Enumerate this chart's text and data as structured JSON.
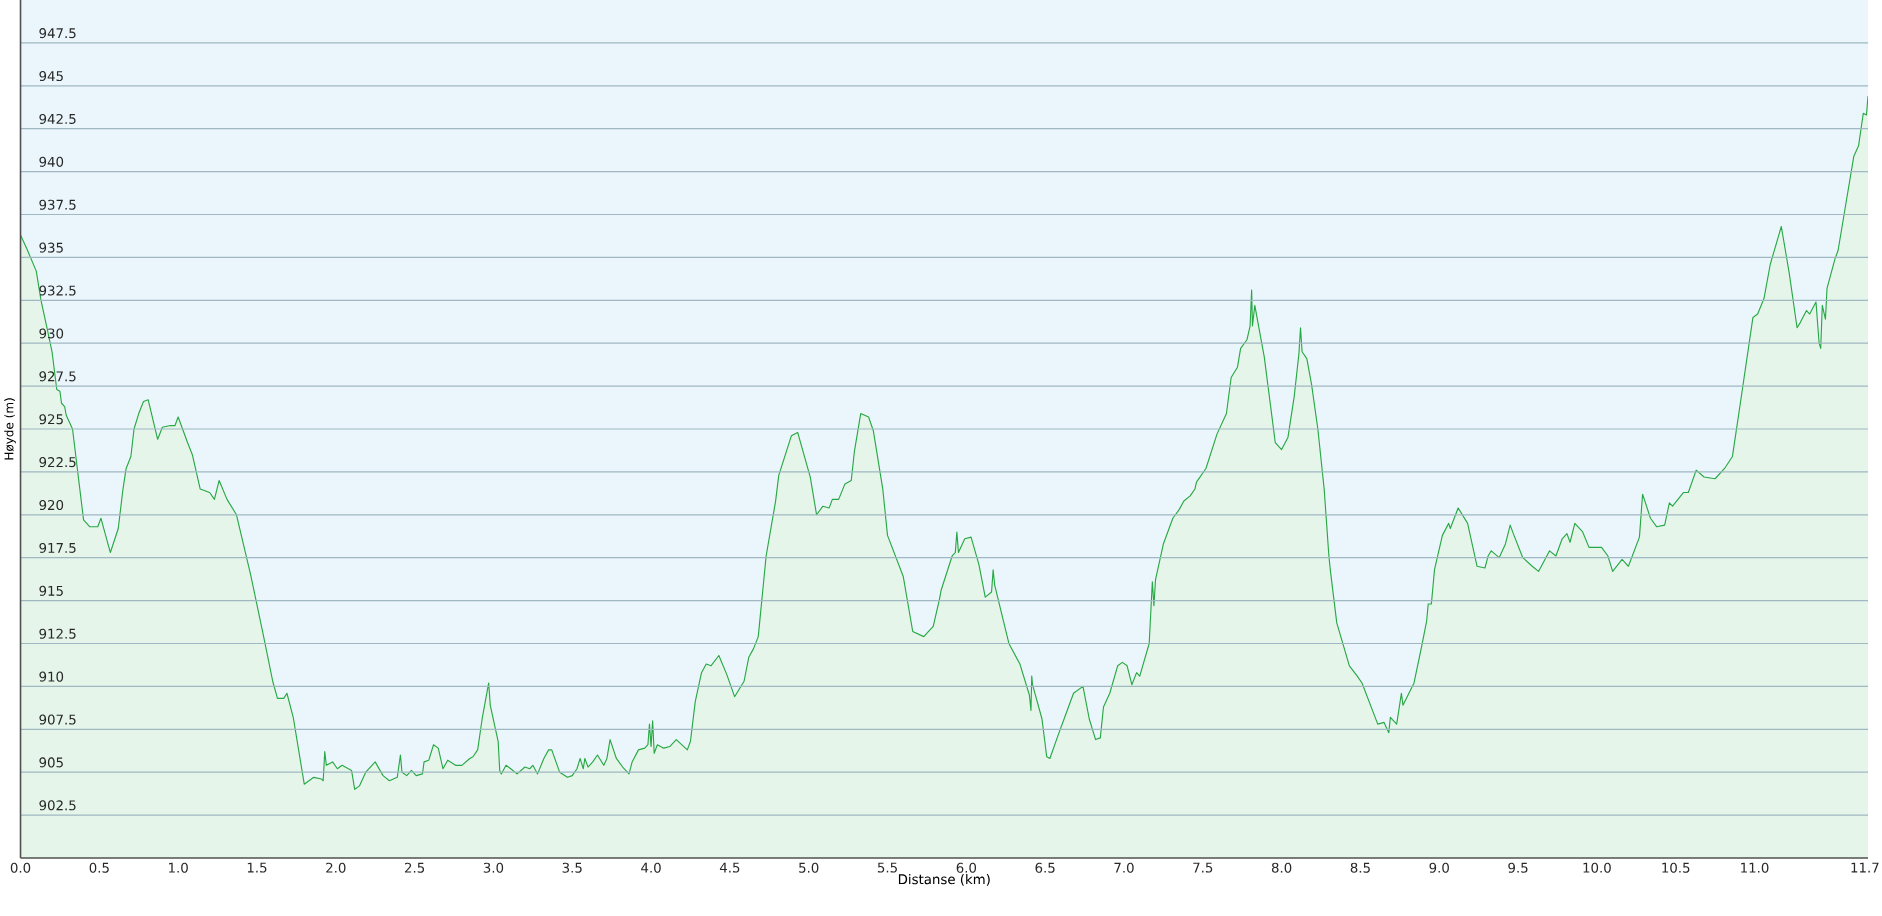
{
  "chart_data": {
    "type": "area",
    "xlabel": "Distanse  (km)",
    "ylabel": "Høyde (m)",
    "grid": "y",
    "xlim": [
      0,
      11.72
    ],
    "ylim": [
      900,
      950
    ],
    "xticks": [
      {
        "value": 0,
        "label": "0.0"
      },
      0.5,
      {
        "value": 1,
        "label": "1.0"
      },
      1.5,
      {
        "value": 2,
        "label": "2.0"
      },
      2.5,
      {
        "value": 3,
        "label": "3.0"
      },
      3.5,
      {
        "value": 4,
        "label": "4.0"
      },
      4.5,
      {
        "value": 5,
        "label": "5.0"
      },
      5.5,
      {
        "value": 6,
        "label": "6.0"
      },
      6.5,
      {
        "value": 7,
        "label": "7.0"
      },
      7.5,
      {
        "value": 8,
        "label": "8.0"
      },
      8.5,
      {
        "value": 9,
        "label": "9.0"
      },
      9.5,
      {
        "value": 10,
        "label": "10.0"
      },
      10.5,
      {
        "value": 11,
        "label": "11.0"
      },
      11.7
    ],
    "yticks": [
      902.5,
      905,
      907.5,
      910,
      912.5,
      915,
      917.5,
      920,
      922.5,
      925,
      927.5,
      930,
      932.5,
      935,
      937.5,
      940,
      942.5,
      945,
      947.5
    ],
    "x": [
      0,
      0.04,
      0.1,
      0.13,
      0.17,
      0.2,
      0.23,
      0.25,
      0.26,
      0.28,
      0.29,
      0.33,
      0.4,
      0.44,
      0.49,
      0.51,
      0.57,
      0.62,
      0.65,
      0.67,
      0.7,
      0.72,
      0.75,
      0.78,
      0.81,
      0.87,
      0.9,
      0.95,
      0.98,
      1.0,
      1.06,
      1.09,
      1.14,
      1.2,
      1.23,
      1.26,
      1.31,
      1.37,
      1.46,
      1.54,
      1.6,
      1.63,
      1.67,
      1.69,
      1.73,
      1.8,
      1.86,
      1.91,
      1.92,
      1.93,
      1.94,
      1.98,
      2.01,
      2.04,
      2.1,
      2.12,
      2.15,
      2.19,
      2.25,
      2.3,
      2.34,
      2.39,
      2.41,
      2.42,
      2.45,
      2.48,
      2.51,
      2.55,
      2.56,
      2.59,
      2.62,
      2.65,
      2.68,
      2.71,
      2.76,
      2.8,
      2.85,
      2.87,
      2.9,
      2.93,
      2.97,
      2.98,
      3.03,
      3.04,
      3.05,
      3.08,
      3.11,
      3.15,
      3.2,
      3.23,
      3.25,
      3.28,
      3.32,
      3.35,
      3.37,
      3.42,
      3.47,
      3.5,
      3.53,
      3.55,
      3.57,
      3.58,
      3.6,
      3.63,
      3.66,
      3.7,
      3.72,
      3.74,
      3.78,
      3.82,
      3.86,
      3.88,
      3.92,
      3.96,
      3.98,
      3.99,
      4.0,
      4.01,
      4.02,
      4.04,
      4.08,
      4.12,
      4.16,
      4.23,
      4.25,
      4.28,
      4.32,
      4.35,
      4.38,
      4.43,
      4.48,
      4.53,
      4.59,
      4.62,
      4.65,
      4.68,
      4.73,
      4.79,
      4.81,
      4.89,
      4.93,
      5.01,
      5.05,
      5.09,
      5.13,
      5.15,
      5.19,
      5.23,
      5.27,
      5.29,
      5.33,
      5.38,
      5.41,
      5.47,
      5.5,
      5.6,
      5.66,
      5.73,
      5.79,
      5.83,
      5.84,
      5.91,
      5.93,
      5.94,
      5.95,
      5.99,
      6.03,
      6.08,
      6.12,
      6.16,
      6.17,
      6.18,
      6.27,
      6.34,
      6.4,
      6.41,
      6.415,
      6.42,
      6.48,
      6.51,
      6.53,
      6.58,
      6.62,
      6.68,
      6.74,
      6.78,
      6.82,
      6.85,
      6.87,
      6.91,
      6.96,
      6.99,
      7.02,
      7.05,
      7.08,
      7.1,
      7.16,
      7.18,
      7.19,
      7.2,
      7.25,
      7.31,
      7.35,
      7.38,
      7.42,
      7.45,
      7.46,
      7.52,
      7.59,
      7.65,
      7.68,
      7.72,
      7.74,
      7.78,
      7.8,
      7.81,
      7.815,
      7.83,
      7.89,
      7.96,
      8.0,
      8.04,
      8.08,
      8.11,
      8.12,
      8.13,
      8.16,
      8.19,
      8.23,
      8.27,
      8.3,
      8.31,
      8.35,
      8.43,
      8.48,
      8.51,
      8.61,
      8.65,
      8.68,
      8.69,
      8.73,
      8.76,
      8.77,
      8.84,
      8.89,
      8.92,
      8.93,
      8.95,
      8.97,
      9.02,
      9.06,
      9.07,
      9.12,
      9.18,
      9.24,
      9.29,
      9.31,
      9.33,
      9.38,
      9.42,
      9.45,
      9.47,
      9.53,
      9.59,
      9.63,
      9.7,
      9.74,
      9.78,
      9.81,
      9.83,
      9.86,
      9.91,
      9.95,
      10.03,
      10.07,
      10.1,
      10.16,
      10.2,
      10.27,
      10.29,
      10.34,
      10.38,
      10.43,
      10.46,
      10.48,
      10.55,
      10.58,
      10.63,
      10.68,
      10.75,
      10.81,
      10.86,
      10.91,
      10.99,
      11.02,
      11.06,
      11.1,
      11.17,
      11.22,
      11.27,
      11.29,
      11.33,
      11.35,
      11.39,
      11.41,
      11.42,
      11.43,
      11.45,
      11.46,
      11.51,
      11.53,
      11.57,
      11.63,
      11.66,
      11.69,
      11.71,
      11.72
    ],
    "series": [
      {
        "color": "#27a844",
        "values": [
          936.3,
          935.5,
          934.2,
          932.5,
          930.8,
          929.5,
          927.3,
          927.2,
          926.5,
          926.3,
          925.8,
          925,
          919.7,
          919.3,
          919.3,
          919.8,
          917.8,
          919.2,
          921.5,
          922.7,
          923.4,
          925,
          925.9,
          926.6,
          926.7,
          924.4,
          925.1,
          925.2,
          925.2,
          925.7,
          924.2,
          923.5,
          921.5,
          921.3,
          920.9,
          922,
          920.9,
          920,
          916.5,
          913,
          910.3,
          909.3,
          909.3,
          909.6,
          908.2,
          904.3,
          904.7,
          904.6,
          904.5,
          906.2,
          905.4,
          905.6,
          905.2,
          905.4,
          905.1,
          904,
          904.2,
          905,
          905.6,
          904.8,
          904.5,
          904.7,
          906,
          905,
          904.8,
          905.1,
          904.8,
          904.9,
          905.6,
          905.7,
          906.6,
          906.4,
          905.2,
          905.7,
          905.4,
          905.4,
          905.8,
          905.9,
          906.3,
          908.2,
          910.2,
          908.9,
          906.8,
          905.1,
          904.9,
          905.4,
          905.2,
          904.9,
          905.3,
          905.2,
          905.4,
          904.9,
          905.8,
          906.3,
          906.3,
          905,
          904.7,
          904.8,
          905.2,
          905.8,
          905.2,
          905.8,
          905.3,
          905.6,
          906,
          905.4,
          905.8,
          906.9,
          905.8,
          905.3,
          904.9,
          905.6,
          906.3,
          906.4,
          906.6,
          907.8,
          906.5,
          908,
          906.1,
          906.6,
          906.4,
          906.5,
          906.9,
          906.3,
          906.8,
          909.1,
          910.8,
          911.3,
          911.2,
          911.8,
          910.7,
          909.4,
          910.3,
          911.7,
          912.2,
          912.9,
          917.6,
          920.8,
          922.3,
          924.6,
          924.8,
          922.2,
          920,
          920.5,
          920.4,
          920.9,
          920.9,
          921.8,
          922,
          923.7,
          925.9,
          925.7,
          924.9,
          921.5,
          918.8,
          916.4,
          913.2,
          912.9,
          913.5,
          915.1,
          915.6,
          917.6,
          917.8,
          919,
          917.8,
          918.6,
          918.7,
          917.1,
          915.2,
          915.5,
          916.8,
          915.9,
          912.5,
          911.3,
          909.5,
          908.6,
          910.6,
          910.1,
          908.1,
          905.9,
          905.8,
          907.1,
          908.1,
          909.6,
          910,
          908.1,
          906.9,
          907,
          908.8,
          909.6,
          911.2,
          911.4,
          911.2,
          910.1,
          910.8,
          910.6,
          912.5,
          916.1,
          914.7,
          916.2,
          918.3,
          919.8,
          920.3,
          920.8,
          921.1,
          921.5,
          921.9,
          922.7,
          924.7,
          925.9,
          928,
          928.6,
          929.7,
          930.2,
          931,
          933.1,
          931,
          932.2,
          929.2,
          924.2,
          923.8,
          924.5,
          926.9,
          929.4,
          930.9,
          929.5,
          929.1,
          927.6,
          925,
          921.5,
          917.6,
          916.7,
          913.7,
          911.2,
          910.6,
          910.2,
          907.8,
          907.9,
          907.3,
          908.2,
          907.8,
          909.6,
          908.9,
          910.2,
          912.4,
          913.8,
          914.8,
          914.8,
          916.8,
          918.8,
          919.5,
          919.2,
          920.4,
          919.5,
          917,
          916.9,
          917.6,
          917.9,
          917.5,
          918.3,
          919.4,
          918.9,
          917.5,
          917,
          916.7,
          917.9,
          917.6,
          918.6,
          918.9,
          918.4,
          919.5,
          919,
          918.1,
          918.1,
          917.6,
          916.7,
          917.4,
          917,
          918.7,
          921.2,
          919.8,
          919.3,
          919.4,
          920.7,
          920.5,
          921.3,
          921.3,
          922.6,
          922.2,
          922.1,
          922.7,
          923.4,
          926.5,
          931.5,
          931.7,
          932.6,
          934.6,
          936.8,
          934.1,
          930.9,
          931.2,
          931.9,
          931.7,
          932.4,
          930,
          929.7,
          932.2,
          931.4,
          933.2,
          934.9,
          935.4,
          937.6,
          940.9,
          941.5,
          943.4,
          943.3,
          944.4
        ]
      }
    ]
  }
}
